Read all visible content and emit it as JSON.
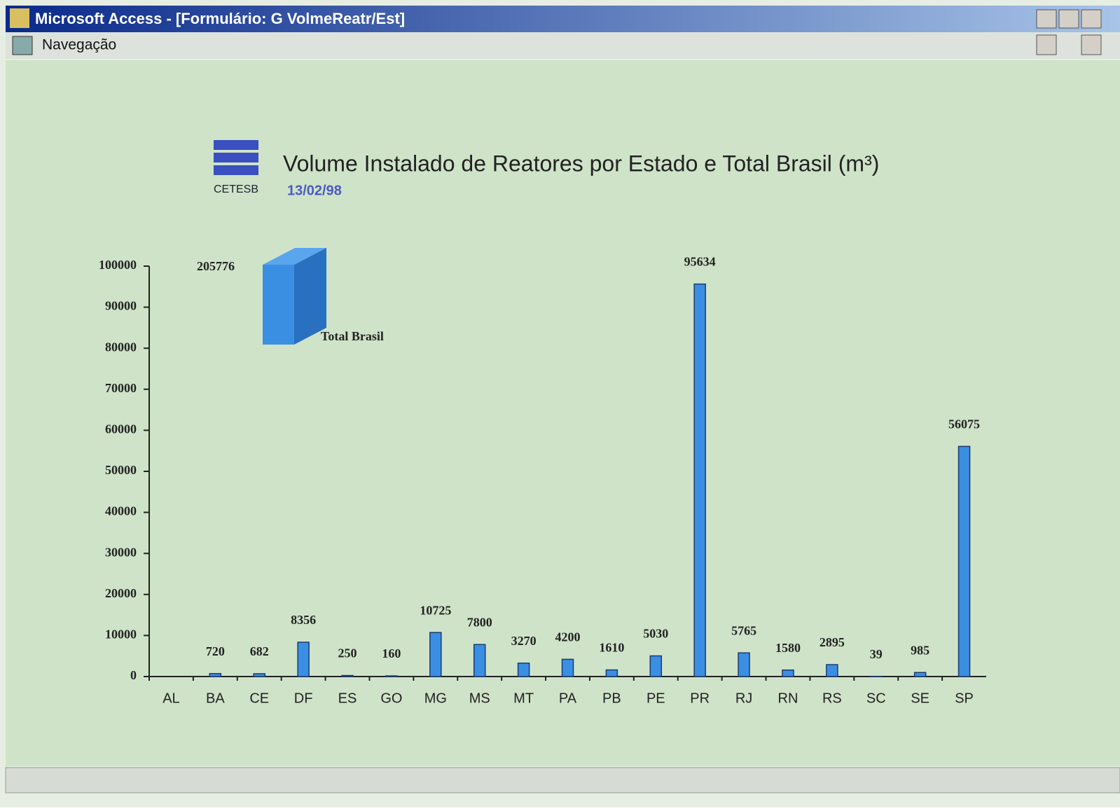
{
  "window": {
    "title": "Microsoft Access - [Formulário: G VolmeReatr/Est]",
    "menu": "Navegação"
  },
  "logo": "CETESB",
  "chart_data": {
    "type": "bar",
    "title": "Volume Instalado de Reatores por Estado e Total Brasil (m³)",
    "subtitle": "13/02/98",
    "categories": [
      "AL",
      "BA",
      "CE",
      "DF",
      "ES",
      "GO",
      "MG",
      "MS",
      "MT",
      "PA",
      "PB",
      "PE",
      "PR",
      "RJ",
      "RN",
      "RS",
      "SC",
      "SE",
      "SP"
    ],
    "values": [
      null,
      720,
      682,
      8356,
      250,
      160,
      10725,
      7800,
      3270,
      4200,
      1610,
      5030,
      95634,
      5765,
      1580,
      2895,
      39,
      985,
      56075
    ],
    "color": "#3b8fe3",
    "ylim": [
      0,
      100000
    ],
    "yticks": [
      0,
      10000,
      20000,
      30000,
      40000,
      50000,
      60000,
      70000,
      80000,
      90000,
      100000
    ],
    "total": {
      "label": "Total Brasil",
      "value": 205776
    }
  }
}
